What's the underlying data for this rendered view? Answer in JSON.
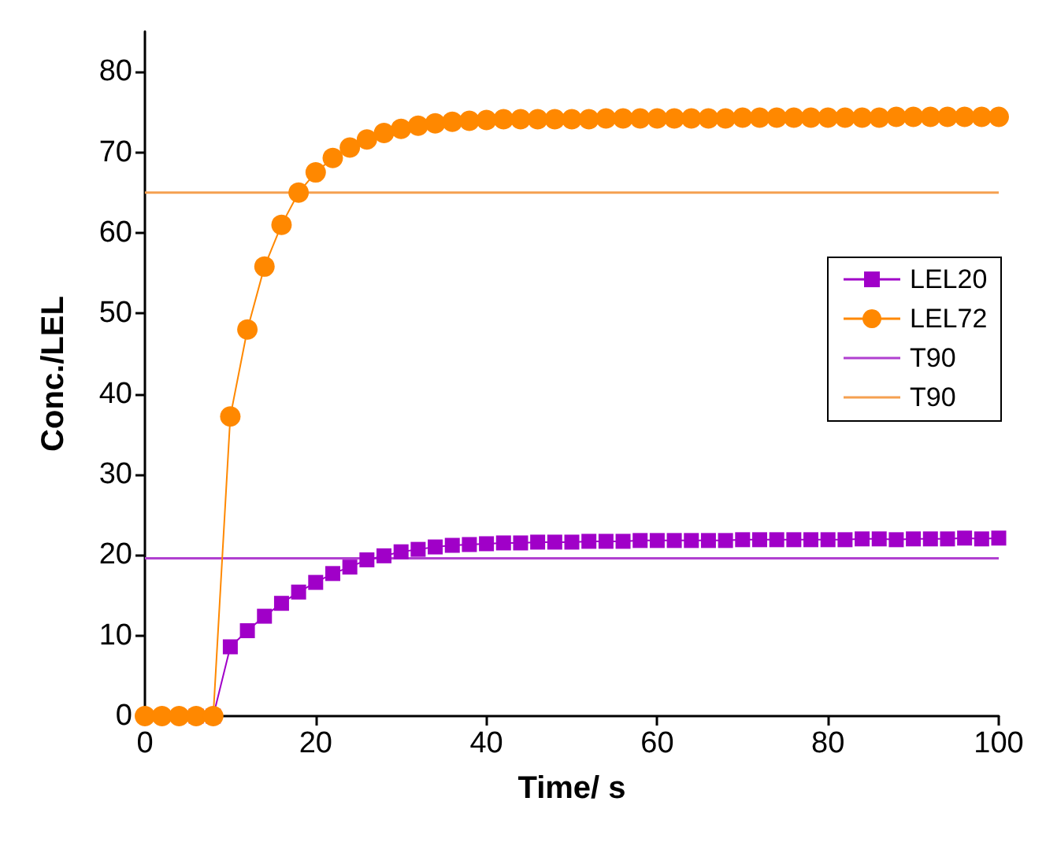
{
  "chart_data": {
    "type": "line",
    "xlabel": "Time/ s",
    "ylabel": "Conc./LEL",
    "xlim": [
      0,
      100
    ],
    "xticks": [
      0,
      20,
      40,
      60,
      80,
      100
    ],
    "ylim": [
      0,
      85
    ],
    "yticks": [
      0,
      10,
      20,
      30,
      40,
      50,
      60,
      70,
      80
    ],
    "grid": false,
    "legend": "right",
    "line_style": "solid",
    "x": [
      0,
      2,
      4,
      6,
      8,
      10,
      12,
      14,
      16,
      18,
      20,
      22,
      24,
      26,
      28,
      30,
      32,
      34,
      36,
      38,
      40,
      42,
      44,
      46,
      48,
      50,
      52,
      54,
      56,
      58,
      60,
      62,
      64,
      66,
      68,
      70,
      72,
      74,
      76,
      78,
      80,
      82,
      84,
      86,
      88,
      90,
      92,
      94,
      96,
      98,
      100
    ],
    "series": [
      {
        "name": "LEL20",
        "color": "#a000c8",
        "marker": "square",
        "values": [
          null,
          null,
          null,
          0,
          0,
          8.6,
          10.6,
          12.4,
          14.0,
          15.4,
          16.6,
          17.7,
          18.5,
          19.4,
          19.9,
          20.4,
          20.7,
          21.0,
          21.2,
          21.3,
          21.4,
          21.5,
          21.5,
          21.6,
          21.6,
          21.6,
          21.7,
          21.7,
          21.7,
          21.8,
          21.8,
          21.8,
          21.8,
          21.8,
          21.8,
          21.9,
          21.9,
          21.9,
          21.9,
          21.9,
          21.9,
          21.9,
          22.0,
          22.0,
          21.9,
          22.0,
          22.0,
          22.0,
          22.1,
          22.0,
          22.1
        ]
      },
      {
        "name": "LEL72",
        "color": "#ff8800",
        "marker": "circle",
        "values": [
          0,
          0,
          0,
          0,
          0,
          37.2,
          48.0,
          55.8,
          61.0,
          65.0,
          67.5,
          69.3,
          70.6,
          71.6,
          72.4,
          72.9,
          73.3,
          73.6,
          73.8,
          73.9,
          74.0,
          74.1,
          74.1,
          74.1,
          74.1,
          74.1,
          74.1,
          74.2,
          74.2,
          74.2,
          74.2,
          74.2,
          74.2,
          74.2,
          74.2,
          74.3,
          74.3,
          74.3,
          74.3,
          74.3,
          74.3,
          74.3,
          74.3,
          74.3,
          74.4,
          74.4,
          74.4,
          74.4,
          74.4,
          74.4,
          74.4
        ]
      }
    ],
    "ref_lines": [
      {
        "axis": "y",
        "value": 19.6,
        "label": "T90",
        "color": "#b040d0",
        "line_style": "solid"
      },
      {
        "axis": "y",
        "value": 65.0,
        "label": "T90",
        "color": "#f5a050",
        "line_style": "solid"
      }
    ]
  }
}
